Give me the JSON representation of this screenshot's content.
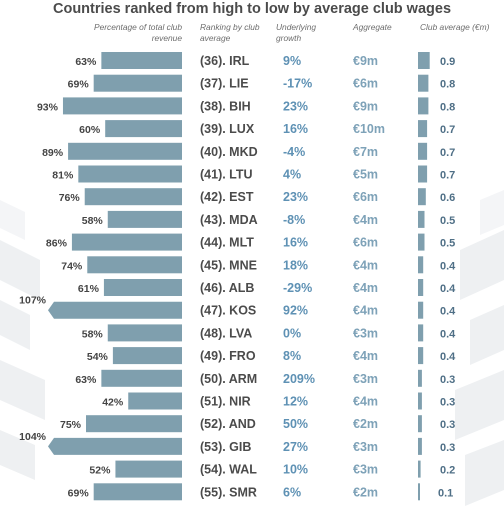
{
  "chart_data": {
    "type": "table",
    "title": "Countries ranked from high to low by average club wages",
    "columns": {
      "pct": "Percentage of total club revenue",
      "rank": "Ranking by club average",
      "growth": "Underlying growth",
      "aggregate": "Aggregate",
      "avg": "Club average (€m)"
    },
    "colors": {
      "bar": "#7f9fae",
      "rank_text": "#4b4b4b",
      "growth_text": "#5e91b4",
      "aggregate_text": "#7ea2b8",
      "avg_text": "#4f6f86",
      "pct_text": "#444444",
      "header_text": "#6d6d6d"
    },
    "pct_axis_max": 100,
    "avg_axis_max": 1.0,
    "rows": [
      {
        "pct": 63,
        "pct_label": "63%",
        "rank": "(36). IRL",
        "growth": "9%",
        "aggregate": "€9m",
        "avg": 0.9,
        "avg_label": "0.9"
      },
      {
        "pct": 69,
        "pct_label": "69%",
        "rank": "(37). LIE",
        "growth": "-17%",
        "aggregate": "€6m",
        "avg": 0.8,
        "avg_label": "0.8"
      },
      {
        "pct": 93,
        "pct_label": "93%",
        "rank": "(38). BIH",
        "growth": "23%",
        "aggregate": "€9m",
        "avg": 0.8,
        "avg_label": "0.8"
      },
      {
        "pct": 60,
        "pct_label": "60%",
        "rank": "(39). LUX",
        "growth": "16%",
        "aggregate": "€10m",
        "avg": 0.7,
        "avg_label": "0.7"
      },
      {
        "pct": 89,
        "pct_label": "89%",
        "rank": "(40). MKD",
        "growth": "-4%",
        "aggregate": "€7m",
        "avg": 0.7,
        "avg_label": "0.7"
      },
      {
        "pct": 81,
        "pct_label": "81%",
        "rank": "(41). LTU",
        "growth": "4%",
        "aggregate": "€5m",
        "avg": 0.7,
        "avg_label": "0.7"
      },
      {
        "pct": 76,
        "pct_label": "76%",
        "rank": "(42). EST",
        "growth": "23%",
        "aggregate": "€6m",
        "avg": 0.6,
        "avg_label": "0.6"
      },
      {
        "pct": 58,
        "pct_label": "58%",
        "rank": "(43). MDA",
        "growth": "-8%",
        "aggregate": "€4m",
        "avg": 0.5,
        "avg_label": "0.5"
      },
      {
        "pct": 86,
        "pct_label": "86%",
        "rank": "(44). MLT",
        "growth": "16%",
        "aggregate": "€6m",
        "avg": 0.5,
        "avg_label": "0.5"
      },
      {
        "pct": 74,
        "pct_label": "74%",
        "rank": "(45). MNE",
        "growth": "18%",
        "aggregate": "€4m",
        "avg": 0.4,
        "avg_label": "0.4"
      },
      {
        "pct": 61,
        "pct_label": "61%",
        "rank": "(46). ALB",
        "growth": "-29%",
        "aggregate": "€4m",
        "avg": 0.4,
        "avg_label": "0.4"
      },
      {
        "pct": 107,
        "pct_label": "107%",
        "rank": "(47). KOS",
        "growth": "92%",
        "aggregate": "€4m",
        "avg": 0.4,
        "avg_label": "0.4"
      },
      {
        "pct": 58,
        "pct_label": "58%",
        "rank": "(48). LVA",
        "growth": "0%",
        "aggregate": "€3m",
        "avg": 0.4,
        "avg_label": "0.4"
      },
      {
        "pct": 54,
        "pct_label": "54%",
        "rank": "(49). FRO",
        "growth": "8%",
        "aggregate": "€4m",
        "avg": 0.4,
        "avg_label": "0.4"
      },
      {
        "pct": 63,
        "pct_label": "63%",
        "rank": "(50). ARM",
        "growth": "209%",
        "aggregate": "€3m",
        "avg": 0.3,
        "avg_label": "0.3"
      },
      {
        "pct": 42,
        "pct_label": "42%",
        "rank": "(51). NIR",
        "growth": "12%",
        "aggregate": "€4m",
        "avg": 0.3,
        "avg_label": "0.3"
      },
      {
        "pct": 75,
        "pct_label": "75%",
        "rank": "(52). AND",
        "growth": "50%",
        "aggregate": "€2m",
        "avg": 0.3,
        "avg_label": "0.3"
      },
      {
        "pct": 104,
        "pct_label": "104%",
        "rank": "(53). GIB",
        "growth": "27%",
        "aggregate": "€3m",
        "avg": 0.3,
        "avg_label": "0.3"
      },
      {
        "pct": 52,
        "pct_label": "52%",
        "rank": "(54). WAL",
        "growth": "10%",
        "aggregate": "€3m",
        "avg": 0.2,
        "avg_label": "0.2"
      },
      {
        "pct": 69,
        "pct_label": "69%",
        "rank": "(55). SMR",
        "growth": "6%",
        "aggregate": "€2m",
        "avg": 0.1,
        "avg_label": "0.1"
      }
    ]
  }
}
